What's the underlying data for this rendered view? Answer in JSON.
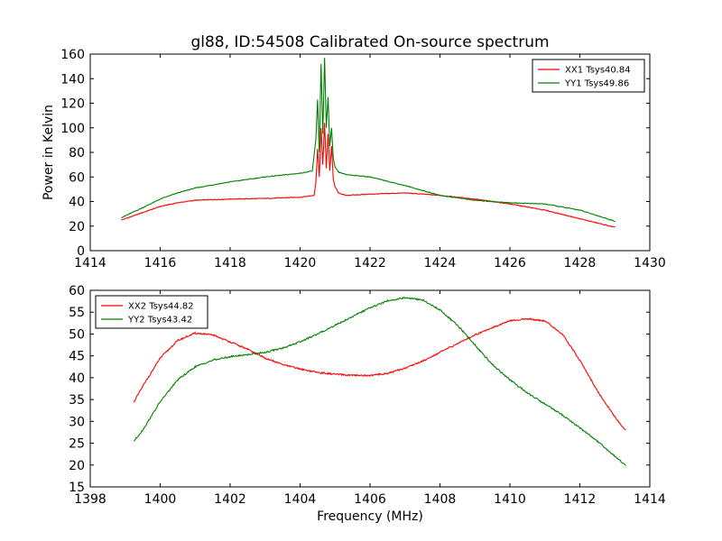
{
  "chart_data": [
    {
      "type": "line",
      "title": "gl88, ID:54508 Calibrated On-source spectrum",
      "xlabel": "",
      "ylabel": "Power in Kelvin",
      "xlim": [
        1414,
        1430
      ],
      "ylim": [
        0,
        160
      ],
      "x_ticks": [
        1414,
        1416,
        1418,
        1420,
        1422,
        1424,
        1426,
        1428,
        1430
      ],
      "y_ticks": [
        0,
        20,
        40,
        60,
        80,
        100,
        120,
        140,
        160
      ],
      "grid": false,
      "legend_position": "top-right",
      "series": [
        {
          "name": "XX1 Tsys40.84",
          "color": "#ff0000",
          "x": [
            1414.9,
            1415.5,
            1416.0,
            1416.5,
            1417.0,
            1418.0,
            1419.0,
            1420.0,
            1420.4,
            1420.45,
            1420.5,
            1420.55,
            1420.6,
            1420.65,
            1420.7,
            1420.75,
            1420.8,
            1420.85,
            1420.9,
            1420.95,
            1421.0,
            1421.1,
            1421.3,
            1422.0,
            1423.0,
            1424.0,
            1425.0,
            1426.0,
            1427.0,
            1428.0,
            1429.0
          ],
          "y": [
            25,
            31,
            36,
            39,
            41,
            42,
            42.5,
            43.5,
            45,
            55,
            83,
            60,
            100,
            70,
            104,
            67,
            95,
            65,
            85,
            58,
            52,
            47,
            45,
            46,
            47,
            45,
            42,
            38,
            33,
            26,
            19
          ]
        },
        {
          "name": "YY1 Tsys49.86",
          "color": "#008000",
          "x": [
            1414.9,
            1415.5,
            1416.0,
            1416.5,
            1417.0,
            1418.0,
            1419.0,
            1420.0,
            1420.35,
            1420.45,
            1420.5,
            1420.55,
            1420.6,
            1420.65,
            1420.7,
            1420.75,
            1420.8,
            1420.85,
            1420.9,
            1420.95,
            1421.0,
            1421.1,
            1421.3,
            1422.0,
            1423.0,
            1424.0,
            1425.0,
            1426.0,
            1427.0,
            1428.0,
            1429.0
          ],
          "y": [
            27,
            35,
            42,
            47,
            51,
            56,
            60,
            63,
            65,
            90,
            123,
            80,
            152,
            95,
            157,
            100,
            125,
            85,
            100,
            75,
            68,
            64,
            62,
            60,
            53,
            45,
            41,
            39,
            38,
            33,
            24
          ]
        }
      ]
    },
    {
      "type": "line",
      "title": "",
      "xlabel": "Frequency (MHz)",
      "ylabel": "",
      "xlim": [
        1398,
        1414
      ],
      "ylim": [
        15,
        60
      ],
      "x_ticks": [
        1398,
        1400,
        1402,
        1404,
        1406,
        1408,
        1410,
        1412,
        1414
      ],
      "y_ticks": [
        15,
        20,
        25,
        30,
        35,
        40,
        45,
        50,
        55,
        60
      ],
      "grid": false,
      "legend_position": "top-left",
      "series": [
        {
          "name": "XX2 Tsys44.82",
          "color": "#ff0000",
          "x": [
            1399.25,
            1399.5,
            1400.0,
            1400.5,
            1401.0,
            1401.5,
            1402.0,
            1402.5,
            1403.0,
            1403.5,
            1404.0,
            1404.5,
            1405.0,
            1405.5,
            1406.0,
            1406.5,
            1407.0,
            1407.5,
            1408.0,
            1408.5,
            1409.0,
            1409.5,
            1410.0,
            1410.5,
            1411.0,
            1411.5,
            1412.0,
            1412.5,
            1413.0,
            1413.3
          ],
          "y": [
            34.5,
            38,
            44.5,
            48.5,
            50.2,
            49.8,
            48.2,
            46.5,
            44.5,
            43,
            42,
            41.2,
            40.8,
            40.5,
            40.5,
            41,
            42.2,
            43.8,
            45.8,
            47.8,
            49.8,
            51.5,
            53,
            53.5,
            53,
            50,
            44,
            37,
            31,
            28
          ]
        },
        {
          "name": "YY2 Tsys43.42",
          "color": "#008000",
          "x": [
            1399.25,
            1399.5,
            1400.0,
            1400.5,
            1401.0,
            1401.5,
            1402.0,
            1402.5,
            1403.0,
            1403.5,
            1404.0,
            1404.5,
            1405.0,
            1405.5,
            1406.0,
            1406.5,
            1407.0,
            1407.5,
            1408.0,
            1408.5,
            1409.0,
            1409.5,
            1410.0,
            1410.5,
            1411.0,
            1411.5,
            1412.0,
            1412.5,
            1413.0,
            1413.3
          ],
          "y": [
            25.5,
            28,
            34.5,
            39.5,
            42.5,
            44,
            44.8,
            45.3,
            45.8,
            46.8,
            48.2,
            50,
            52,
            54,
            56,
            57.6,
            58.3,
            57.8,
            55.5,
            52,
            47.5,
            43,
            39.5,
            36.5,
            34,
            31.5,
            28.5,
            25.5,
            22,
            20
          ]
        }
      ]
    }
  ]
}
